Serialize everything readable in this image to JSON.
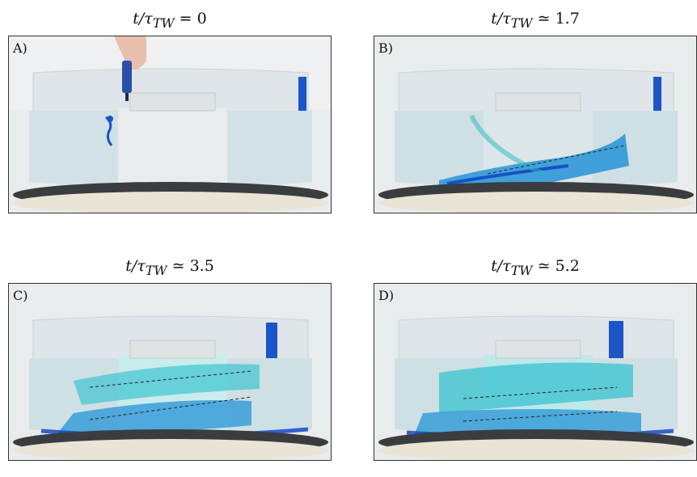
{
  "panels": [
    {
      "letter": "A)",
      "caption_left": "t/τ",
      "caption_sub": "TW",
      "caption_rel": " = ",
      "caption_value": "0"
    },
    {
      "letter": "B)",
      "caption_left": "t/τ",
      "caption_sub": "TW",
      "caption_rel": " ≃ ",
      "caption_value": "1.7"
    },
    {
      "letter": "C)",
      "caption_left": "t/τ",
      "caption_sub": "TW",
      "caption_rel": " ≃ ",
      "caption_value": "3.5"
    },
    {
      "letter": "D)",
      "caption_left": "t/τ",
      "caption_sub": "TW",
      "caption_rel": " ≃ ",
      "caption_value": "5.2"
    }
  ]
}
